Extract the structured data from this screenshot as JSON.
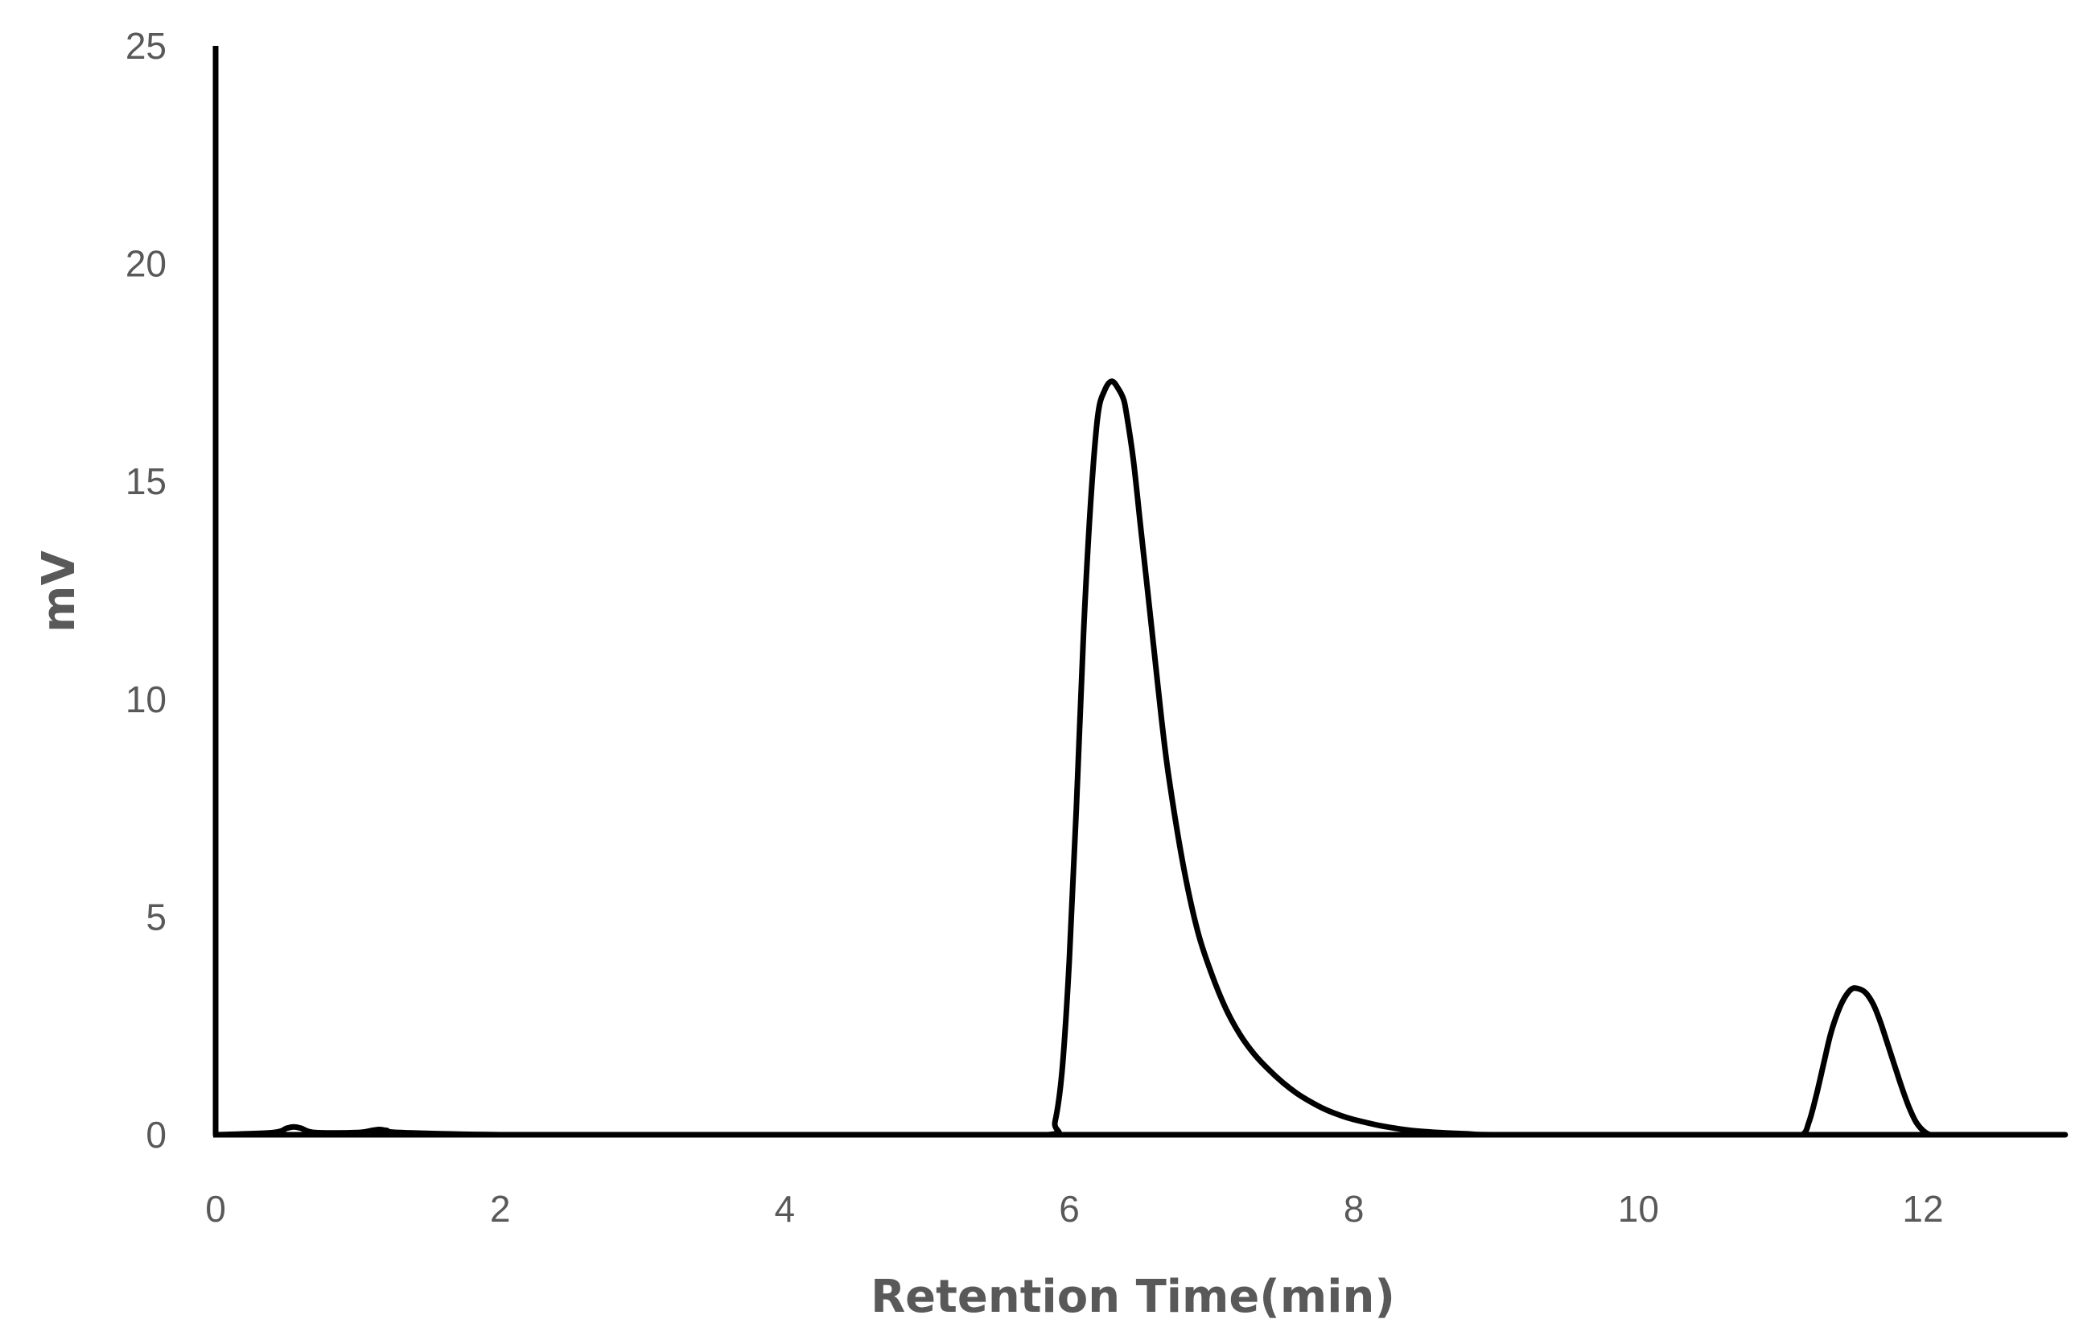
{
  "chart_data": {
    "type": "line",
    "title": "",
    "xlabel": "Retention Time(min)",
    "ylabel": "mV",
    "xlim": [
      0,
      13
    ],
    "ylim": [
      0,
      25
    ],
    "xticks": [
      "0",
      "2",
      "4",
      "6",
      "8",
      "10",
      "12"
    ],
    "yticks": [
      "0",
      "5",
      "10",
      "15",
      "20",
      "25"
    ],
    "grid": false,
    "legend": "none",
    "line_color": "#000000",
    "series": [
      {
        "x": [
          0,
          0.4,
          0.5,
          0.55,
          0.6,
          0.7,
          1.0,
          1.1,
          1.15,
          1.2,
          1.3,
          2.0,
          3.0,
          4.0,
          5.0,
          5.85,
          5.9,
          5.95,
          6.0,
          6.05,
          6.1,
          6.15,
          6.2,
          6.25,
          6.3,
          6.35,
          6.38,
          6.4,
          6.45,
          6.5,
          6.55,
          6.6,
          6.65,
          6.7,
          6.8,
          6.9,
          7.0,
          7.1,
          7.2,
          7.3,
          7.4,
          7.5,
          7.6,
          7.7,
          7.8,
          7.9,
          8.0,
          8.2,
          8.4,
          8.6,
          8.8,
          9.0,
          10.0,
          11.0,
          11.15,
          11.2,
          11.25,
          11.3,
          11.35,
          11.4,
          11.45,
          11.5,
          11.55,
          11.6,
          11.65,
          11.7,
          11.75,
          11.8,
          11.85,
          11.9,
          11.95,
          12.0,
          12.05,
          12.1,
          12.5,
          13.0
        ],
        "y": [
          0,
          0.05,
          0.15,
          0.18,
          0.15,
          0.05,
          0.05,
          0.1,
          0.12,
          0.1,
          0.05,
          0,
          0,
          0,
          0,
          0,
          0.3,
          1.5,
          4.0,
          7.5,
          11.5,
          14.5,
          16.5,
          17.1,
          17.3,
          17.1,
          16.9,
          16.6,
          15.5,
          14.0,
          12.5,
          11.0,
          9.5,
          8.2,
          6.2,
          4.7,
          3.7,
          2.9,
          2.3,
          1.85,
          1.5,
          1.2,
          0.95,
          0.75,
          0.58,
          0.45,
          0.35,
          0.2,
          0.1,
          0.05,
          0.02,
          0,
          0,
          0,
          0,
          0.3,
          0.9,
          1.6,
          2.3,
          2.8,
          3.15,
          3.35,
          3.35,
          3.25,
          3.0,
          2.6,
          2.1,
          1.6,
          1.1,
          0.65,
          0.3,
          0.1,
          0,
          0,
          0,
          0
        ]
      }
    ]
  }
}
